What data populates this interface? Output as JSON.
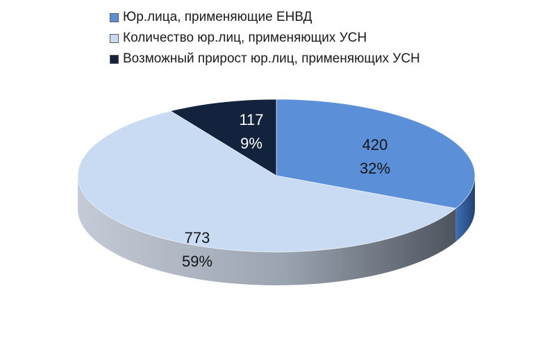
{
  "chart_data": {
    "type": "pie",
    "title": "",
    "legend_position": "top",
    "series": [
      {
        "name": "Юр.лица, применяющие ЕНВД",
        "value": 420,
        "percent_label": "32%",
        "value_label": "420",
        "color": "#5b8fd8"
      },
      {
        "name": "Количество юр.лиц, применяющих УСН",
        "value": 773,
        "percent_label": "59%",
        "value_label": "773",
        "color": "#c9dbf2"
      },
      {
        "name": "Возможный прирост юр.лиц, применяющих УСН",
        "value": 117,
        "percent_label": "9%",
        "value_label": "117",
        "color": "#13233d"
      }
    ]
  }
}
